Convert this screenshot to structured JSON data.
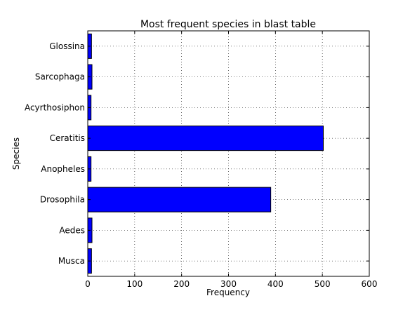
{
  "chart_data": {
    "type": "bar",
    "orientation": "horizontal",
    "title": "Most frequent species in blast table",
    "xlabel": "Frequency",
    "ylabel": "Species",
    "xlim": [
      0,
      600
    ],
    "xticks": [
      0,
      100,
      200,
      300,
      400,
      500,
      600
    ],
    "grid": true,
    "categories": [
      "Musca",
      "Aedes",
      "Drosophila",
      "Anopheles",
      "Ceratitis",
      "Acyrthosiphon",
      "Sarcophaga",
      "Glossina"
    ],
    "values": [
      8,
      9,
      390,
      7,
      502,
      7,
      9,
      8
    ],
    "bar_color": "#0000ff"
  }
}
